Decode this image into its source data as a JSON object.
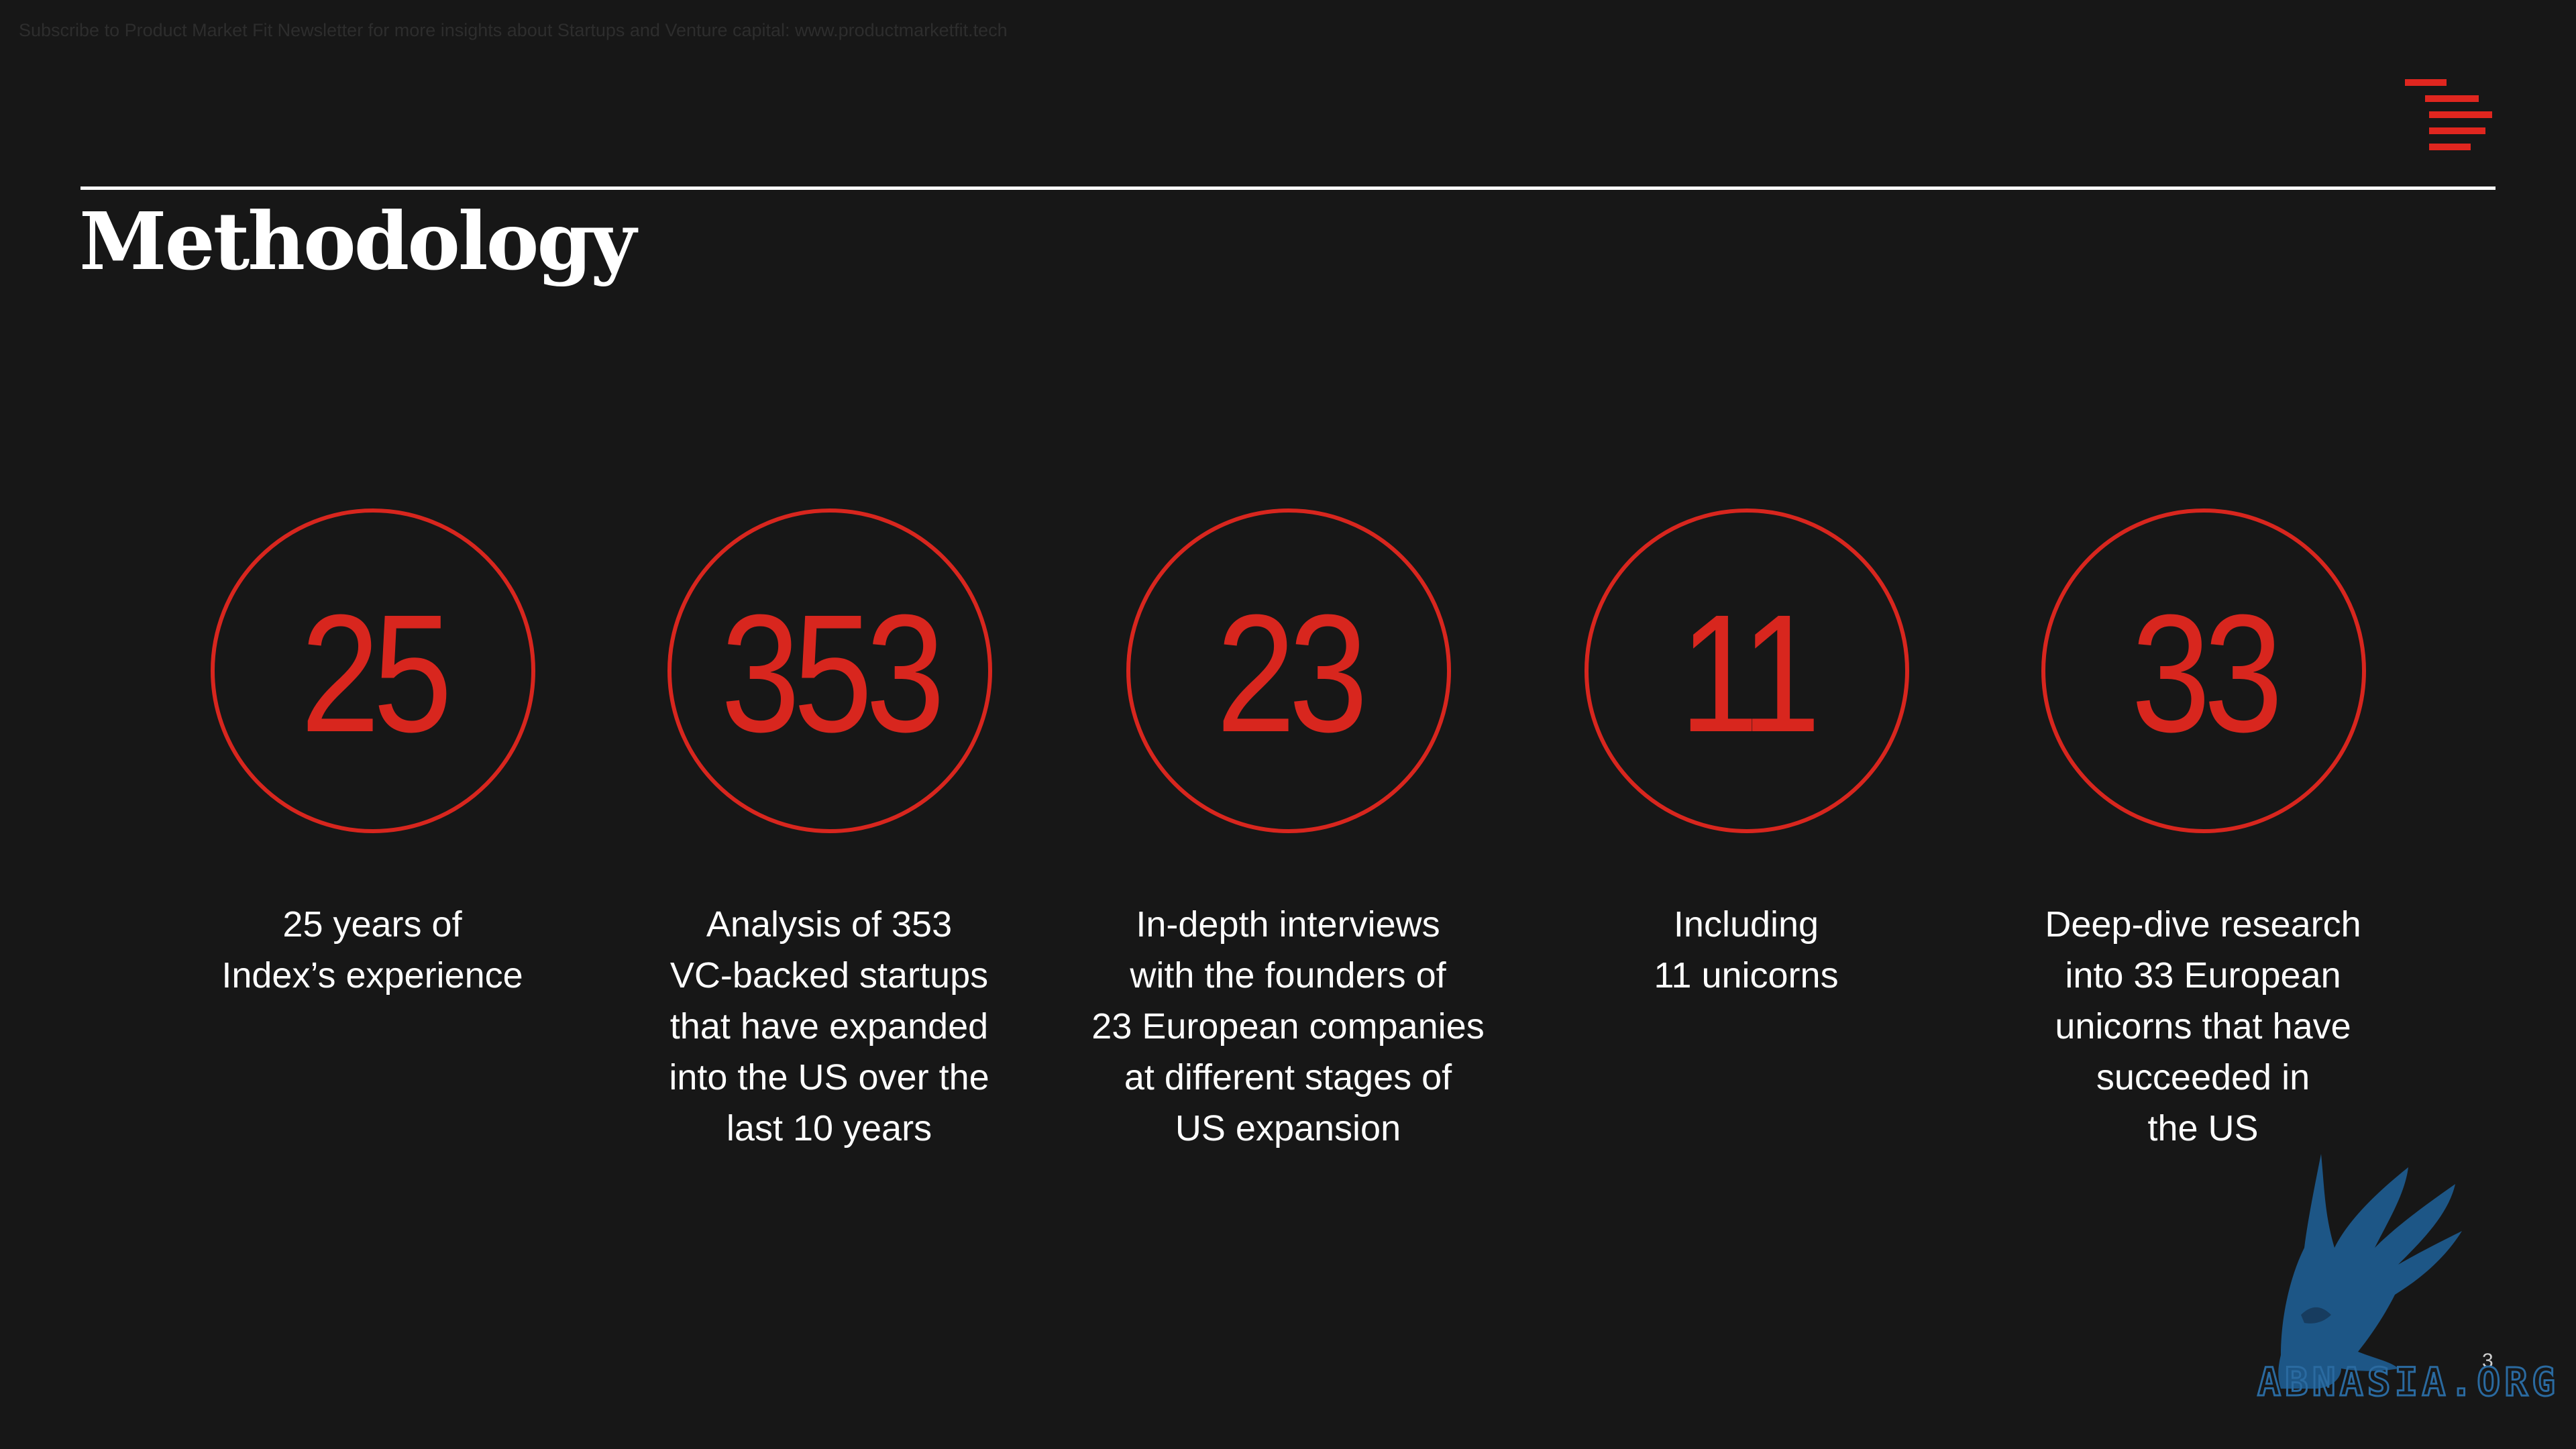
{
  "banner": {
    "text": "Subscribe to Product Market Fit Newsletter for more insights about Startups and Venture capital:  www.productmarketfit.tech"
  },
  "header": {
    "title": "Methodology"
  },
  "stats": [
    {
      "number": "25",
      "lines": [
        "25 years of",
        "Index’s experience"
      ]
    },
    {
      "number": "353",
      "lines": [
        "Analysis of 353",
        "VC-backed startups",
        "that have expanded",
        "into the US over the",
        "last 10 years"
      ]
    },
    {
      "number": "23",
      "lines": [
        "In-depth interviews",
        "with the founders of",
        "23 European companies",
        "at different stages of",
        "US expansion"
      ]
    },
    {
      "number": "11",
      "lines": [
        "Including",
        "11 unicorns"
      ]
    },
    {
      "number": "33",
      "lines": [
        "Deep-dive research",
        "into 33 European",
        "unicorns that have",
        "succeeded in",
        "the US"
      ]
    }
  ],
  "footer": {
    "page_number": "3"
  },
  "watermark": {
    "text": "ABNASIA.ORG",
    "icon": "griffin-icon",
    "color": "#1e5a8c"
  },
  "colors": {
    "accent": "#d8261e",
    "background": "#171717",
    "text": "#ffffff"
  },
  "logo": {
    "icon": "index-ventures-logo-icon"
  }
}
